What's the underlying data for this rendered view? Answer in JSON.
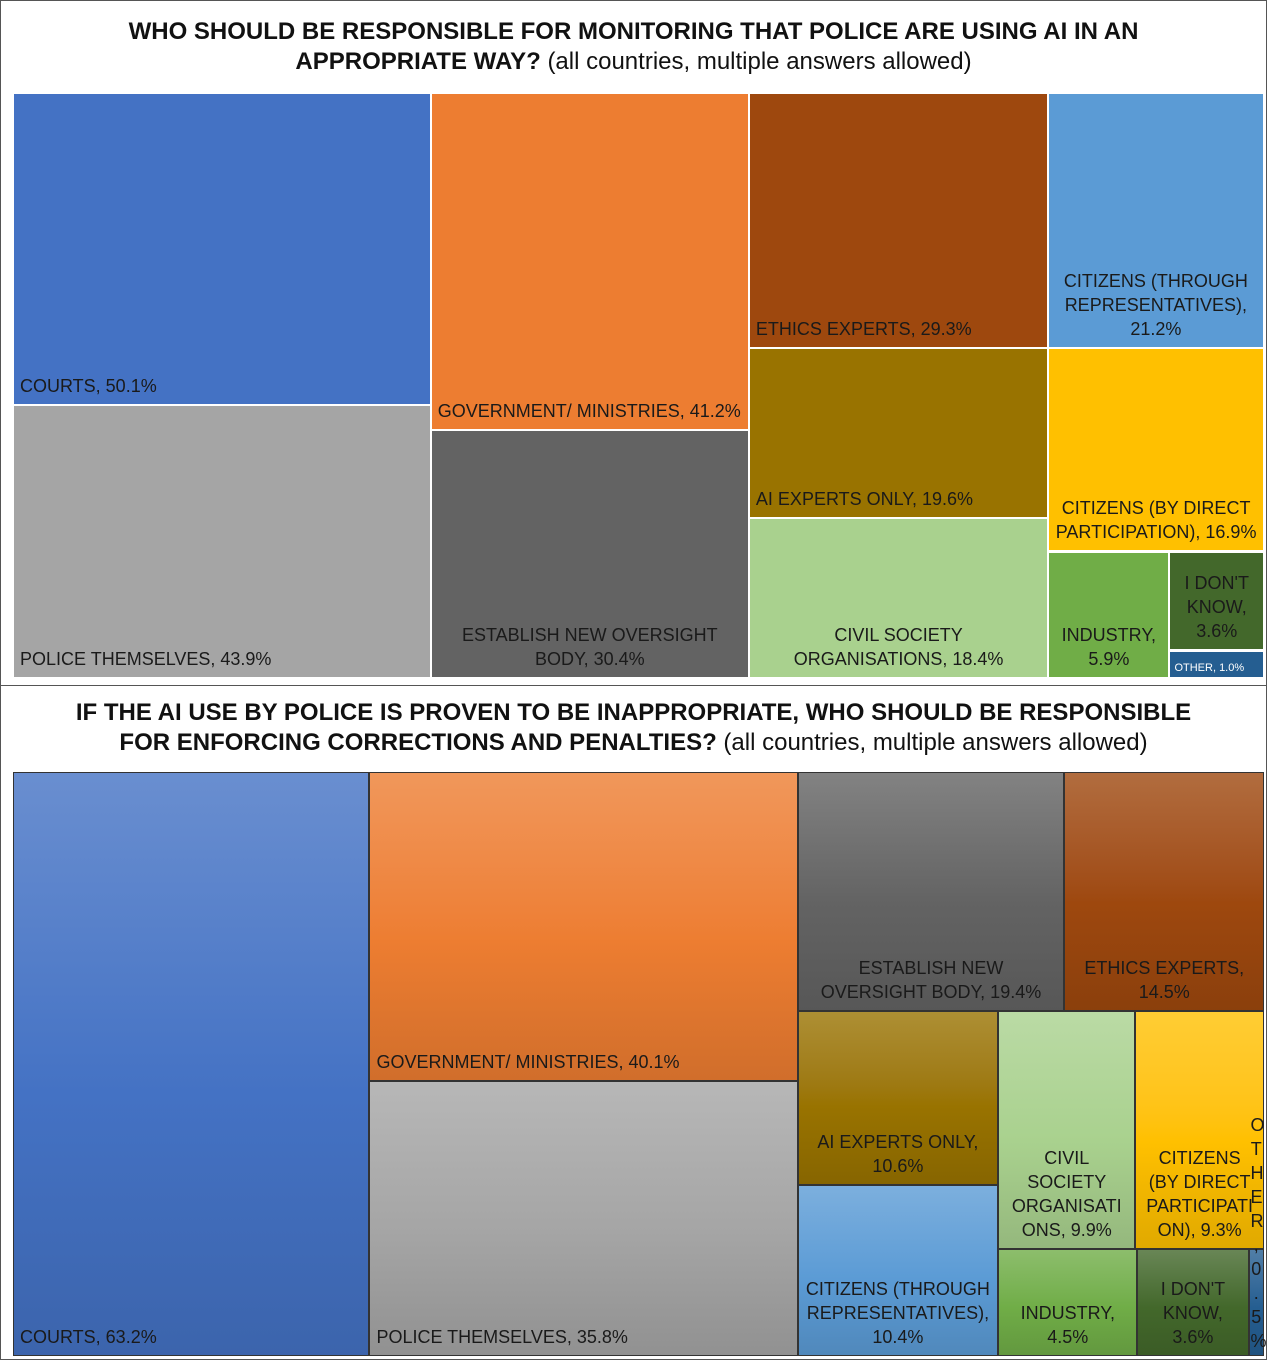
{
  "chart_data": [
    {
      "type": "treemap",
      "title": "WHO SHOULD BE RESPONSIBLE FOR MONITORING THAT POLICE ARE USING AI IN AN APPROPRIATE WAY?",
      "subtitle": "(all countries, multiple answers allowed)",
      "categories": [
        "COURTS, 50.1%",
        "POLICE THEMSELVES, 43.9%",
        "GOVERNMENT/ MINISTRIES, 41.2%",
        "ESTABLISH NEW OVERSIGHT BODY, 30.4%",
        "ETHICS EXPERTS, 29.3%",
        "CITIZENS (THROUGH REPRESENTATIVES), 21.2%",
        "AI EXPERTS ONLY, 19.6%",
        "CIVIL SOCIETY ORGANISATIONS, 18.4%",
        "CITIZENS (BY DIRECT PARTICIPATION), 16.9%",
        "INDUSTRY, 5.9%",
        "I DON'T KNOW, 3.6%",
        "OTHER, 1.0%"
      ],
      "values": [
        50.1,
        43.9,
        41.2,
        30.4,
        29.3,
        21.2,
        19.6,
        18.4,
        16.9,
        5.9,
        3.6,
        1.0
      ],
      "colors": [
        "#4472c4",
        "#a5a5a5",
        "#ed7d31",
        "#636363",
        "#9e480e",
        "#5b9bd5",
        "#997300",
        "#a9d18e",
        "#ffc000",
        "#70ad47",
        "#43682b",
        "#255e91"
      ],
      "gradient": false
    },
    {
      "type": "treemap",
      "title": "IF THE AI USE BY POLICE IS PROVEN TO BE INAPPROPRIATE, WHO SHOULD BE RESPONSIBLE FOR ENFORCING CORRECTIONS AND PENALTIES?",
      "subtitle": "(all countries, multiple answers allowed)",
      "categories": [
        "COURTS, 63.2%",
        "GOVERNMENT/ MINISTRIES, 40.1%",
        "POLICE THEMSELVES, 35.8%",
        "ESTABLISH NEW OVERSIGHT BODY, 19.4%",
        "ETHICS EXPERTS, 14.5%",
        "AI EXPERTS ONLY, 10.6%",
        "CITIZENS (THROUGH REPRESENTATIVES), 10.4%",
        "CIVIL SOCIETY ORGANISATIONS, 9.9%",
        "CITIZENS (BY DIRECT PARTICIPATION), 9.3%",
        "INDUSTRY, 4.5%",
        "I DON'T KNOW, 3.6%",
        "OTHER, 0.5%"
      ],
      "values": [
        63.2,
        40.1,
        35.8,
        19.4,
        14.5,
        10.6,
        10.4,
        9.9,
        9.3,
        4.5,
        3.6,
        0.5
      ],
      "colors": [
        "#4472c4",
        "#ed7d31",
        "#a5a5a5",
        "#636363",
        "#9e480e",
        "#997300",
        "#5b9bd5",
        "#a9d18e",
        "#ffc000",
        "#70ad47",
        "#43682b",
        "#255e91"
      ],
      "gradient": true
    }
  ]
}
